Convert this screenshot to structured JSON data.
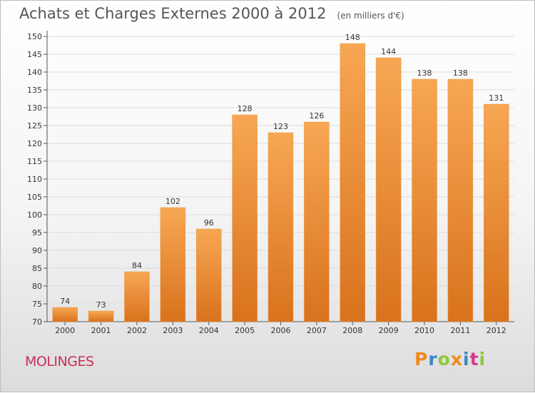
{
  "header": {
    "title": "Achats et Charges Externes 2000 à 2012",
    "subtitle": "(en milliers d'€)"
  },
  "footer": {
    "commune": "MOLINGES",
    "logo_text": "Proxiti",
    "logo_colors": [
      "#f08a1c",
      "#3d86c6",
      "#8fc83a",
      "#f08a1c",
      "#3d86c6",
      "#d63a86",
      "#8fc83a"
    ]
  },
  "colors": {
    "bar_light": "#f7a754",
    "bar_dark": "#d9721c",
    "commune": "#c8305a"
  },
  "chart_data": {
    "type": "bar",
    "title": "Achats et Charges Externes 2000 à 2012",
    "subtitle": "(en milliers d'€)",
    "categories": [
      "2000",
      "2001",
      "2002",
      "2003",
      "2004",
      "2005",
      "2006",
      "2007",
      "2008",
      "2009",
      "2010",
      "2011",
      "2012"
    ],
    "values": [
      74,
      73,
      84,
      102,
      96,
      128,
      123,
      126,
      148,
      144,
      138,
      138,
      131
    ],
    "ylim": [
      70,
      150
    ],
    "yticks": [
      70,
      75,
      80,
      85,
      90,
      95,
      100,
      105,
      110,
      115,
      120,
      125,
      130,
      135,
      140,
      145,
      150
    ],
    "xlabel": "",
    "ylabel": "",
    "grid": "horizontal",
    "data_labels": true
  }
}
